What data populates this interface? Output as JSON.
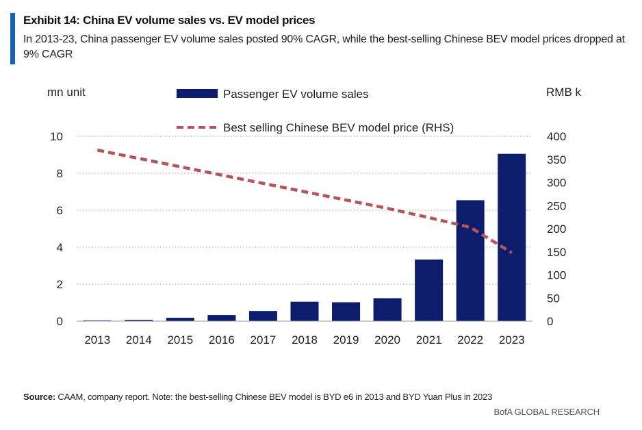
{
  "header": {
    "title": "Exhibit 14: China EV volume sales vs. EV model prices",
    "subtitle": "In 2013-23, China passenger EV volume sales posted 90% CAGR, while the best-selling Chinese BEV model prices dropped at 9% CAGR"
  },
  "colors": {
    "accent": "#1560bd",
    "bar": "#0e1d6b",
    "line": "#b5555a",
    "grid": "#b0b0b0"
  },
  "chart_data": {
    "type": "bar",
    "title": "Exhibit 14: China EV volume sales vs. EV model prices",
    "categories": [
      "2013",
      "2014",
      "2015",
      "2016",
      "2017",
      "2018",
      "2019",
      "2020",
      "2021",
      "2022",
      "2023"
    ],
    "y_left_label": "mn unit",
    "y_right_label": "RMB k",
    "ylim_left": [
      0,
      10
    ],
    "ylim_right": [
      0,
      400
    ],
    "yticks_left": [
      0,
      2,
      4,
      6,
      8,
      10
    ],
    "yticks_right": [
      0,
      50,
      100,
      150,
      200,
      250,
      300,
      350,
      400
    ],
    "grid": true,
    "series": [
      {
        "name": "Passenger EV volume sales",
        "type": "bar",
        "axis": "left",
        "values": [
          0.02,
          0.07,
          0.18,
          0.33,
          0.55,
          1.05,
          1.02,
          1.24,
          3.33,
          6.54,
          9.05
        ]
      },
      {
        "name": "Best selling Chinese BEV model price (RHS)",
        "type": "line",
        "style": "dashed",
        "axis": "right",
        "values": [
          370,
          352,
          334,
          316,
          298,
          280,
          262,
          244,
          224,
          203,
          148
        ]
      }
    ]
  },
  "footer": {
    "source_label": "Source:",
    "source_text": " CAAM, company report. Note: the best-selling Chinese BEV model is BYD e6 in 2013 and BYD Yuan Plus in 2023",
    "brand": "BofA GLOBAL RESEARCH"
  }
}
